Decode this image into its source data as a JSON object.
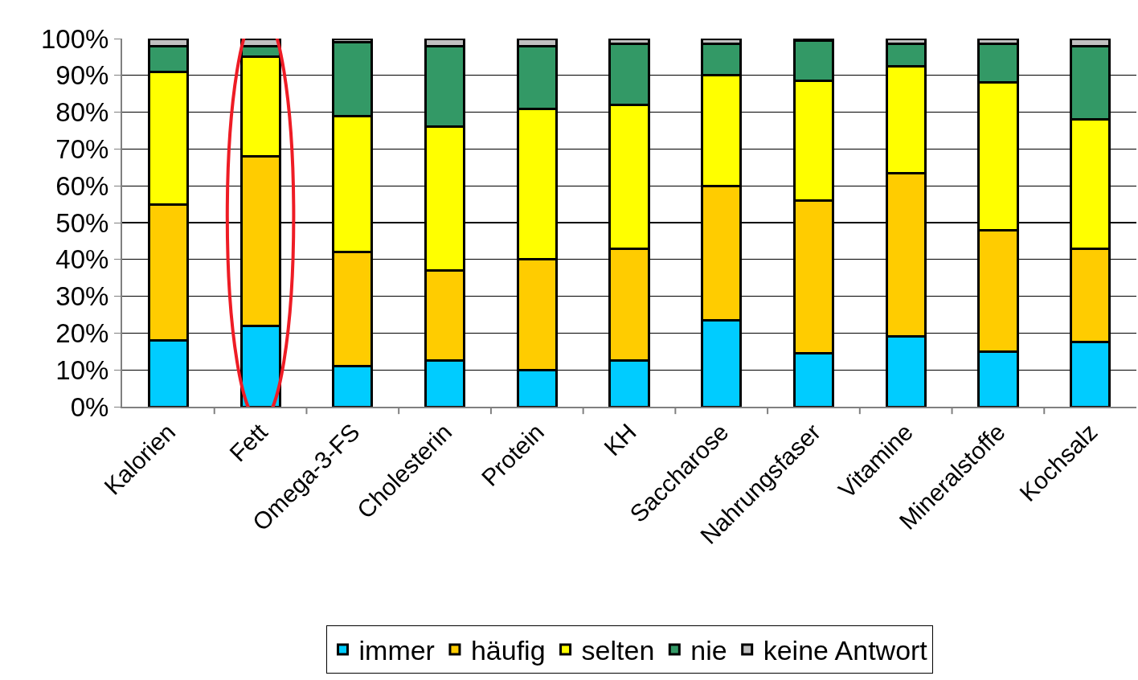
{
  "chart_data": {
    "type": "bar",
    "stacked": true,
    "categories": [
      "Kalorien",
      "Fett",
      "Omega-3-FS",
      "Cholesterin",
      "Protein",
      "KH",
      "Saccharose",
      "Nahrungsfaser",
      "Vitamine",
      "Mineralstoffe",
      "Kochsalz"
    ],
    "series": [
      {
        "name": "immer",
        "color": "#00ccff",
        "values": [
          18,
          22,
          11,
          12.5,
          10,
          12.5,
          23.5,
          14.5,
          19,
          15,
          17.5
        ]
      },
      {
        "name": "häufig",
        "color": "#ffcc00",
        "values": [
          37,
          46,
          31,
          24.5,
          30,
          30.5,
          36.5,
          41.5,
          44.5,
          33,
          25.5
        ]
      },
      {
        "name": "selten",
        "color": "#ffff00",
        "values": [
          36,
          27,
          37,
          39,
          41,
          39,
          30,
          32.5,
          29,
          40,
          35
        ]
      },
      {
        "name": "nie",
        "color": "#339966",
        "values": [
          7,
          3,
          20,
          22,
          17,
          16.5,
          8.5,
          11,
          6,
          10.5,
          20
        ]
      },
      {
        "name": "keine Antwort",
        "color": "#c0c0c0",
        "values": [
          2,
          2,
          1,
          2,
          2,
          1.5,
          1.5,
          0.5,
          1.5,
          1.5,
          2
        ]
      }
    ],
    "ylim": [
      0,
      100
    ],
    "yticks": [
      {
        "value": 0,
        "label": "0%"
      },
      {
        "value": 10,
        "label": "10%"
      },
      {
        "value": 20,
        "label": "20%"
      },
      {
        "value": 30,
        "label": "30%"
      },
      {
        "value": 40,
        "label": "40%"
      },
      {
        "value": 50,
        "label": "50%"
      },
      {
        "value": 60,
        "label": "60%"
      },
      {
        "value": 70,
        "label": "70%"
      },
      {
        "value": 80,
        "label": "80%"
      },
      {
        "value": 90,
        "label": "90%"
      },
      {
        "value": 100,
        "label": "100%"
      }
    ],
    "grid": "y",
    "legend": "bottom"
  }
}
